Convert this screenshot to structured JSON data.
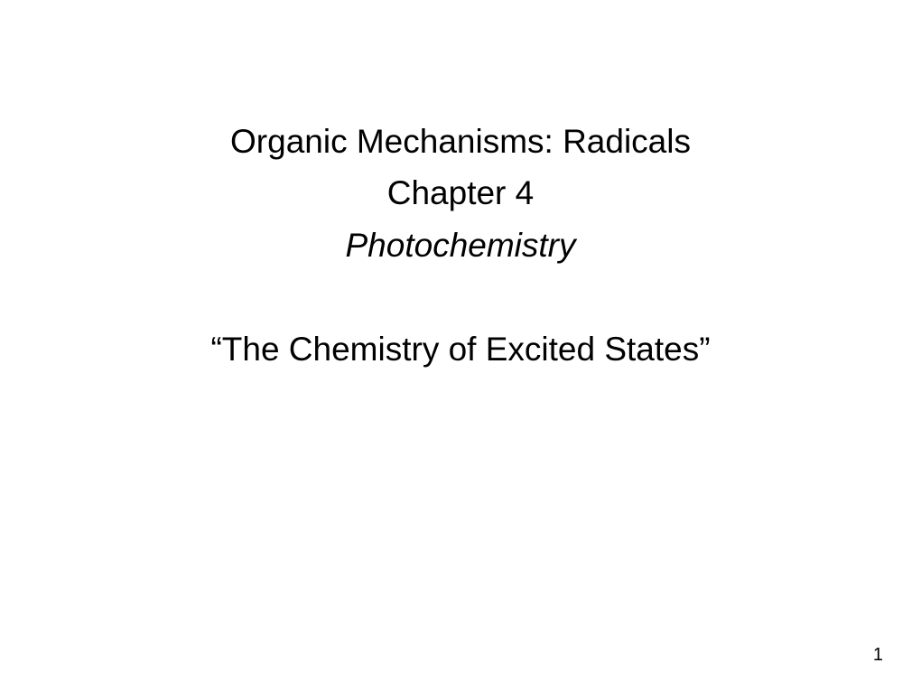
{
  "slide": {
    "line1": "Organic Mechanisms: Radicals",
    "line2": "Chapter 4",
    "line3": "Photochemistry",
    "line4": "“The Chemistry of Excited States”",
    "pageNumber": "1"
  },
  "styling": {
    "background_color": "#ffffff",
    "text_color": "#000000",
    "title_fontsize": 37,
    "pagenum_fontsize": 20,
    "font_family": "Arial",
    "line3_italic": true,
    "alignment": "center"
  }
}
